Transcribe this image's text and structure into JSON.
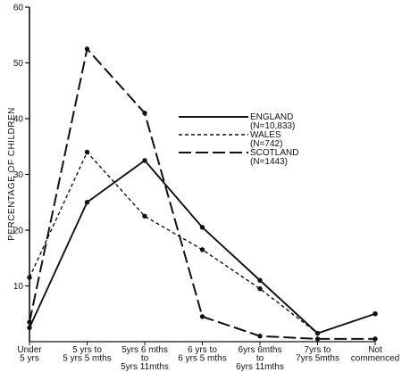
{
  "chart_data": {
    "type": "line",
    "title": "",
    "xlabel": "",
    "ylabel": "PERCENTAGE OF CHILDREN",
    "ylim": [
      0,
      60
    ],
    "yticks": [
      10,
      20,
      30,
      40,
      50,
      60
    ],
    "grid": false,
    "legend_position": "center-right",
    "categories": [
      [
        "Under",
        "5 yrs"
      ],
      [
        "5 yrs to",
        "5 yrs 5 mths"
      ],
      [
        "5yrs 6 mths",
        "to",
        "5yrs 11mths"
      ],
      [
        "6 yrs to",
        "6 yrs 5 mths"
      ],
      [
        "6yrs 6mths",
        "to",
        "6yrs 11mths"
      ],
      [
        "7yrs to",
        "7yrs 5mths"
      ],
      [
        "Not",
        "commenced"
      ]
    ],
    "series": [
      {
        "name": "ENGLAND",
        "sublabel": "(N=10,833)",
        "style": "solid",
        "values": [
          2.5,
          25,
          32.5,
          20.5,
          11,
          1.5,
          5
        ]
      },
      {
        "name": "WALES",
        "sublabel": "(N=742)",
        "style": "dotted",
        "values": [
          11.5,
          34,
          22.5,
          16.5,
          9.5,
          1.5,
          5
        ]
      },
      {
        "name": "SCOTLAND",
        "sublabel": "(N=1443)",
        "style": "dashed",
        "values": [
          3.5,
          52.5,
          41,
          4.5,
          1,
          0.5,
          0.5
        ]
      }
    ]
  }
}
